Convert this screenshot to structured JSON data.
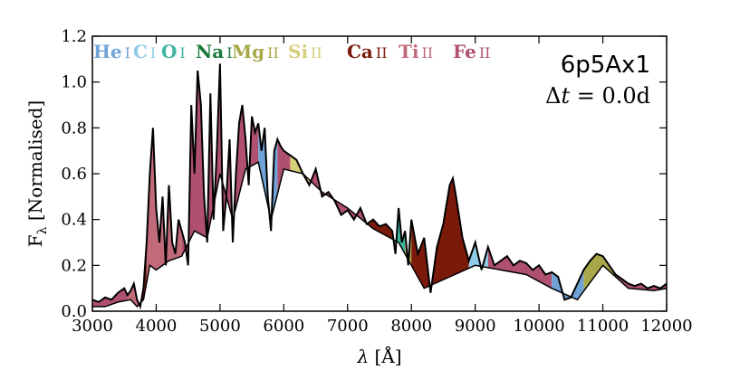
{
  "chart_data": {
    "type": "area",
    "model": "6p5Ax1",
    "epoch": {
      "prefix": "Δ",
      "var": "t",
      "rest": " = 0.0d"
    },
    "xlabel": {
      "var": "λ",
      "rest": " [Å]"
    },
    "ylabel": {
      "main": "F",
      "sub": "λ",
      "rest": " [Normalised]"
    },
    "xlim": [
      3000,
      12000
    ],
    "ylim": [
      0.0,
      1.2
    ],
    "xticks": [
      3000,
      4000,
      5000,
      6000,
      7000,
      8000,
      9000,
      10000,
      11000,
      12000
    ],
    "yticks": [
      0.0,
      0.2,
      0.4,
      0.6,
      0.8,
      1.0,
      1.2
    ],
    "ytick_labels": [
      "0.0",
      "0.2",
      "0.4",
      "0.6",
      "0.8",
      "1.0",
      "1.2"
    ],
    "grid": false,
    "legend": [
      {
        "element": "He",
        "ion": "I",
        "color": "#6fa3d8"
      },
      {
        "element": "C",
        "ion": "I",
        "color": "#8fcbe6"
      },
      {
        "element": "O",
        "ion": "I",
        "color": "#3fb5a0"
      },
      {
        "element": "Na",
        "ion": "I",
        "color": "#1a7a3c"
      },
      {
        "element": "Mg",
        "ion": "II",
        "color": "#a8a84a"
      },
      {
        "element": "Si",
        "ion": "II",
        "color": "#d6cf7a"
      },
      {
        "element": "Ca",
        "ion": "II",
        "color": "#7a1a0a"
      },
      {
        "element": "Ti",
        "ion": "II",
        "color": "#c06a7a"
      },
      {
        "element": "Fe",
        "ion": "II",
        "color": "#b05070"
      }
    ],
    "spectrum_total": {
      "x": [
        3000,
        3100,
        3200,
        3300,
        3400,
        3500,
        3550,
        3600,
        3650,
        3700,
        3750,
        3800,
        3850,
        3900,
        3950,
        4000,
        4050,
        4100,
        4150,
        4200,
        4250,
        4300,
        4350,
        4400,
        4450,
        4500,
        4550,
        4600,
        4650,
        4700,
        4750,
        4800,
        4850,
        4900,
        4950,
        5000,
        5050,
        5100,
        5150,
        5200,
        5250,
        5300,
        5350,
        5400,
        5450,
        5500,
        5550,
        5600,
        5650,
        5700,
        5750,
        5800,
        5850,
        5900,
        5950,
        6000,
        6100,
        6200,
        6300,
        6400,
        6500,
        6600,
        6700,
        6800,
        6900,
        7000,
        7100,
        7200,
        7300,
        7400,
        7500,
        7600,
        7700,
        7750,
        7800,
        7850,
        7900,
        7950,
        8000,
        8100,
        8200,
        8300,
        8400,
        8500,
        8600,
        8650,
        8700,
        8800,
        8900,
        9000,
        9100,
        9200,
        9300,
        9400,
        9500,
        9600,
        9700,
        9800,
        9900,
        10000,
        10100,
        10200,
        10300,
        10400,
        10500,
        10600,
        10700,
        10800,
        10900,
        11000,
        11100,
        11200,
        11300,
        11400,
        11500,
        11600,
        11700,
        11800,
        11900,
        12000
      ],
      "y": [
        0.05,
        0.04,
        0.06,
        0.05,
        0.08,
        0.1,
        0.07,
        0.09,
        0.12,
        0.05,
        0.02,
        0.1,
        0.3,
        0.6,
        0.8,
        0.45,
        0.3,
        0.5,
        0.2,
        0.55,
        0.3,
        0.25,
        0.4,
        0.35,
        0.3,
        0.2,
        0.9,
        0.6,
        1.05,
        0.9,
        0.5,
        0.3,
        0.95,
        0.4,
        0.7,
        1.08,
        0.35,
        0.5,
        0.75,
        0.3,
        0.6,
        0.82,
        0.9,
        0.75,
        0.55,
        0.85,
        0.78,
        0.82,
        0.7,
        0.8,
        0.5,
        0.35,
        0.7,
        0.75,
        0.72,
        0.7,
        0.68,
        0.66,
        0.6,
        0.55,
        0.62,
        0.5,
        0.52,
        0.48,
        0.42,
        0.44,
        0.4,
        0.45,
        0.38,
        0.4,
        0.37,
        0.38,
        0.35,
        0.25,
        0.45,
        0.3,
        0.35,
        0.2,
        0.4,
        0.25,
        0.32,
        0.08,
        0.28,
        0.38,
        0.55,
        0.58,
        0.5,
        0.32,
        0.22,
        0.3,
        0.18,
        0.28,
        0.2,
        0.22,
        0.24,
        0.2,
        0.22,
        0.21,
        0.18,
        0.2,
        0.16,
        0.17,
        0.15,
        0.05,
        0.06,
        0.12,
        0.18,
        0.22,
        0.25,
        0.24,
        0.2,
        0.16,
        0.14,
        0.12,
        0.11,
        0.12,
        0.1,
        0.11,
        0.1,
        0.12
      ]
    },
    "spectrum_continuum": {
      "x": [
        3000,
        3200,
        3400,
        3600,
        3700,
        3800,
        3900,
        4000,
        4200,
        4400,
        4600,
        4800,
        5000,
        5200,
        5400,
        5600,
        5800,
        6000,
        6300,
        6600,
        7000,
        7400,
        7800,
        8200,
        8600,
        9000,
        9400,
        9800,
        10200,
        10600,
        11000,
        11400,
        11800,
        12000
      ],
      "y": [
        0.02,
        0.02,
        0.04,
        0.05,
        0.02,
        0.05,
        0.2,
        0.18,
        0.22,
        0.24,
        0.35,
        0.32,
        0.6,
        0.4,
        0.62,
        0.65,
        0.4,
        0.62,
        0.6,
        0.52,
        0.45,
        0.36,
        0.3,
        0.1,
        0.15,
        0.2,
        0.18,
        0.16,
        0.1,
        0.05,
        0.2,
        0.1,
        0.09,
        0.1
      ]
    }
  }
}
